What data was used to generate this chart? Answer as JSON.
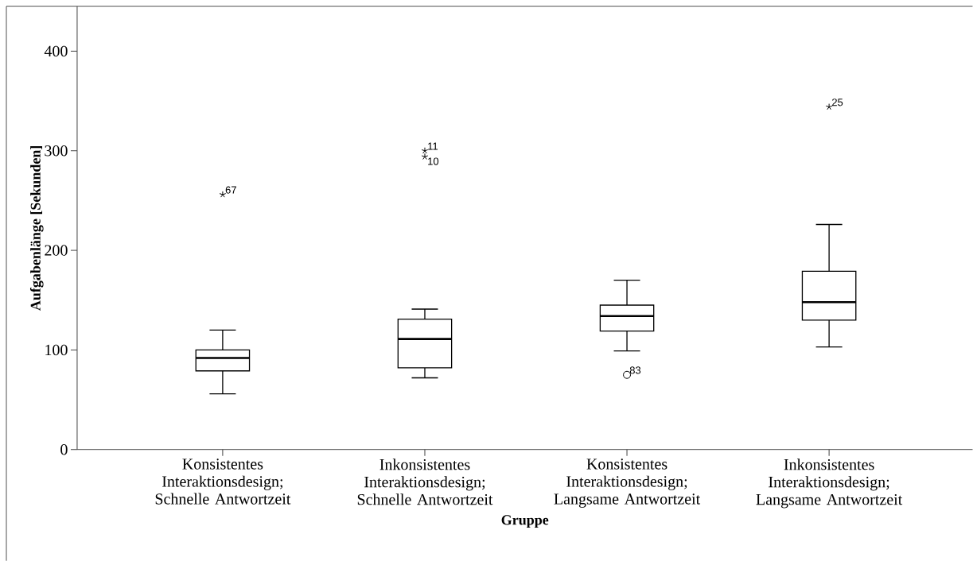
{
  "chart_data": {
    "type": "box",
    "categories": [
      "Konsistentes Interaktionsdesign; Schnelle Antwortzeit",
      "Inkonsistentes Interaktionsdesign; Schnelle Antwortzeit",
      "Konsistentes Interaktionsdesign; Langsame Antwortzeit",
      "Inkonsistentes Interaktionsdesign; Langsame Antwortzeit"
    ],
    "boxes": [
      {
        "low": 56,
        "q1": 79,
        "median": 92,
        "q3": 100,
        "high": 120,
        "outliers": [
          256
        ]
      },
      {
        "low": 72,
        "q1": 82,
        "median": 111,
        "q3": 131,
        "high": 141,
        "outliers": [
          294,
          300
        ]
      },
      {
        "low": 99,
        "q1": 119,
        "median": 134,
        "q3": 145,
        "high": 170,
        "outliers": [
          75
        ]
      },
      {
        "low": 103,
        "q1": 130,
        "median": 148,
        "q3": 179,
        "high": 226,
        "outliers": [
          344
        ]
      }
    ],
    "xlabel": "Gruppe",
    "ylabel": "Aufgabenlänge [Sekunden]",
    "ylim": [
      0,
      445
    ],
    "yticks": [
      0,
      100,
      200,
      300,
      400
    ],
    "grid": false,
    "color": "#000000",
    "annotations": [
      "67",
      "10",
      "11",
      "83",
      "25"
    ]
  }
}
